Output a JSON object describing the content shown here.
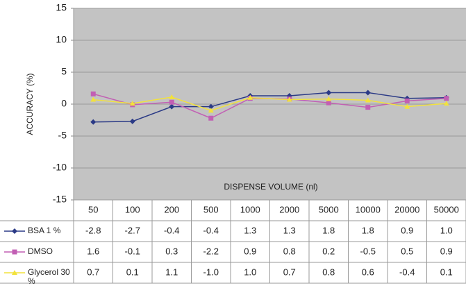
{
  "chart_data": {
    "type": "line",
    "y_label": "ACCURACY (%)",
    "x_label": "DISPENSE VOLUME (nl)",
    "categories": [
      "50",
      "100",
      "200",
      "500",
      "1000",
      "2000",
      "5000",
      "10000",
      "20000",
      "50000"
    ],
    "series": [
      {
        "name": "BSA 1 %",
        "color": "#2b3a86",
        "marker": "diamond",
        "values": [
          -2.8,
          -2.7,
          -0.4,
          -0.4,
          1.3,
          1.3,
          1.8,
          1.8,
          0.9,
          1.0
        ],
        "value_labels": [
          "-2.8",
          "-2.7",
          "-0.4",
          "-0.4",
          "1.3",
          "1.3",
          "1.8",
          "1.8",
          "0.9",
          "1.0"
        ]
      },
      {
        "name": "DMSO",
        "color": "#c25fb4",
        "marker": "square",
        "values": [
          1.6,
          -0.1,
          0.3,
          -2.2,
          0.9,
          0.8,
          0.2,
          -0.5,
          0.5,
          0.9
        ],
        "value_labels": [
          "1.6",
          "-0.1",
          "0.3",
          "-2.2",
          "0.9",
          "0.8",
          "0.2",
          "-0.5",
          "0.5",
          "0.9"
        ]
      },
      {
        "name": "Glycerol 30 %",
        "color": "#f2e23c",
        "marker": "triangle",
        "values": [
          0.7,
          0.1,
          1.1,
          -1.0,
          1.0,
          0.7,
          0.8,
          0.6,
          -0.4,
          0.1
        ],
        "value_labels": [
          "0.7",
          "0.1",
          "1.1",
          "-1.0",
          "1.0",
          "0.7",
          "0.8",
          "0.6",
          "-0.4",
          "0.1"
        ]
      }
    ],
    "ylim": [
      -15,
      15
    ],
    "yticks": [
      15,
      10,
      5,
      0,
      -5,
      -10,
      -15
    ],
    "grid": true
  }
}
